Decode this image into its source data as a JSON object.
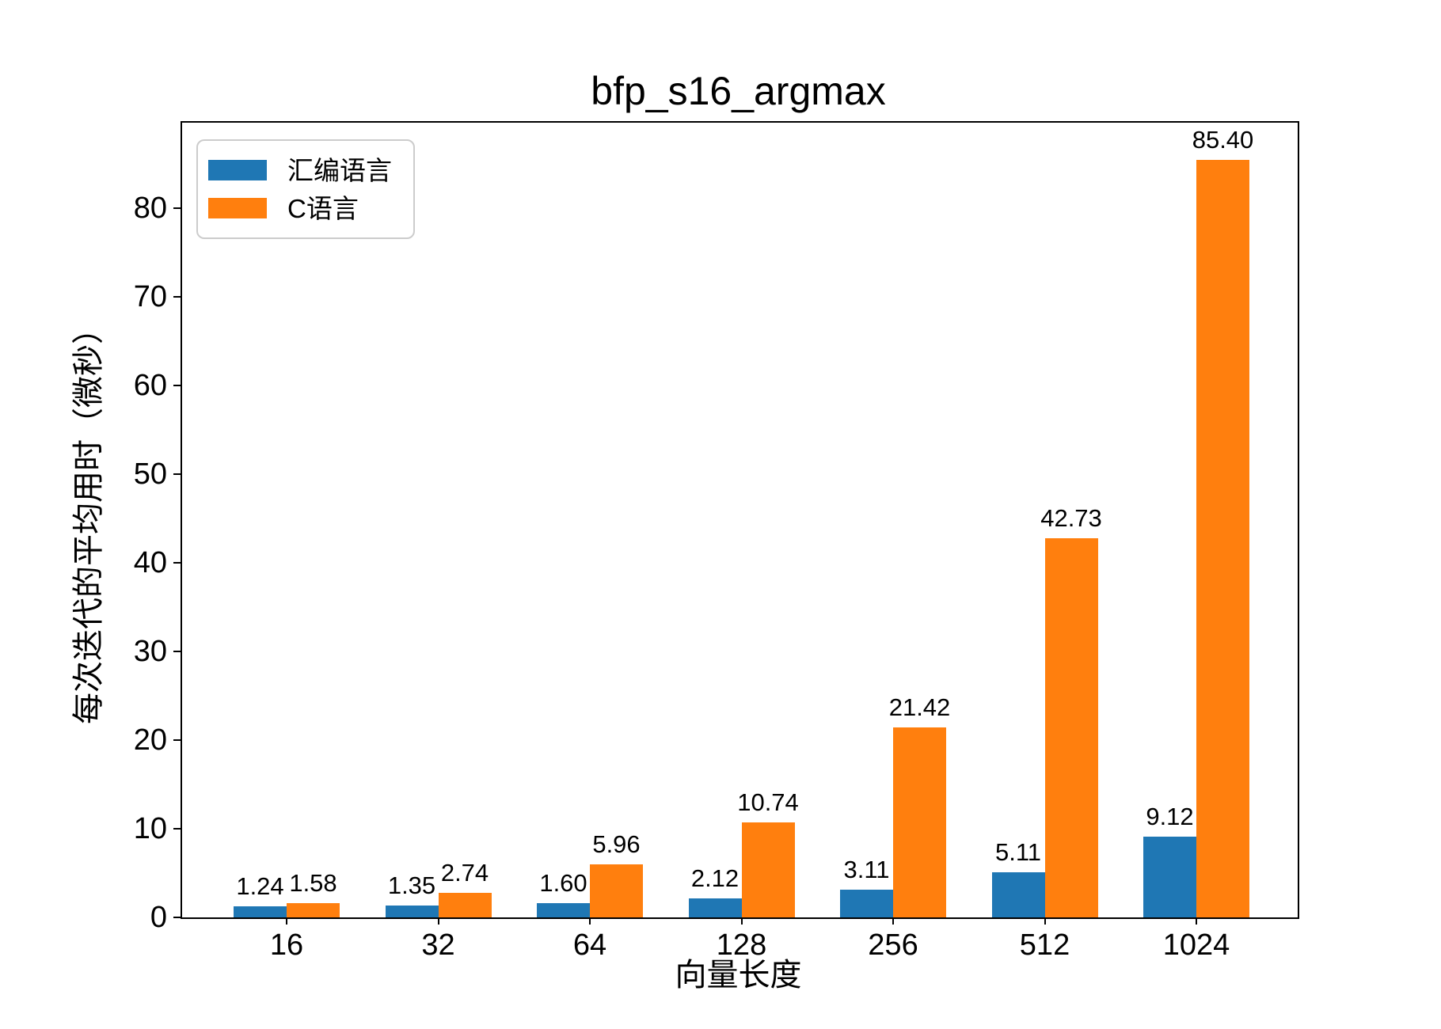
{
  "chart_data": {
    "type": "bar",
    "title": "bfp_s16_argmax",
    "xlabel": "向量长度",
    "ylabel": "每次迭代的平均用时（微秒）",
    "categories": [
      "16",
      "32",
      "64",
      "128",
      "256",
      "512",
      "1024"
    ],
    "series": [
      {
        "name": "汇编语言",
        "color": "#1f77b4",
        "values": [
          1.24,
          1.35,
          1.6,
          2.12,
          3.11,
          5.11,
          9.12
        ]
      },
      {
        "name": "C语言",
        "color": "#ff7f0e",
        "values": [
          1.58,
          2.74,
          5.96,
          10.74,
          21.42,
          42.73,
          85.4
        ]
      }
    ],
    "bar_value_labels": [
      [
        "1.24",
        "1.35",
        "1.60",
        "2.12",
        "3.11",
        "5.11",
        "9.12"
      ],
      [
        "1.58",
        "2.74",
        "5.96",
        "10.74",
        "21.42",
        "42.73",
        "85.40"
      ]
    ],
    "ylim": [
      0,
      89.6
    ],
    "yticks": [
      "0",
      "10",
      "20",
      "30",
      "40",
      "50",
      "60",
      "70",
      "80"
    ],
    "grid": false,
    "legend_position": "upper-left",
    "axis_color": "#000000",
    "background_color": "#ffffff"
  }
}
